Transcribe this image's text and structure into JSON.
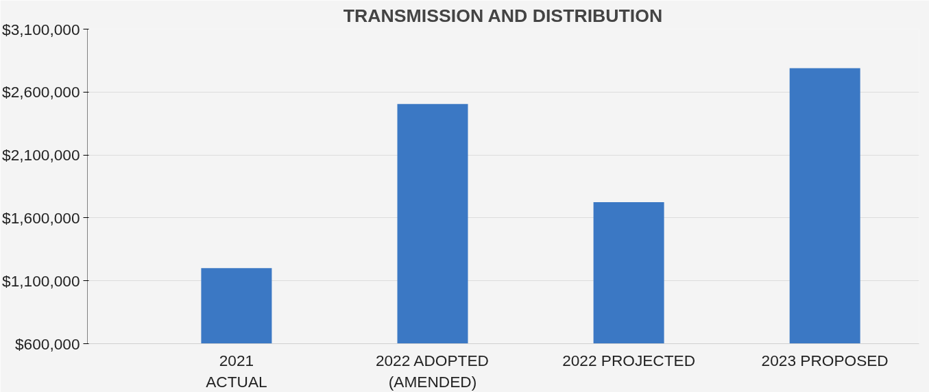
{
  "chart_data": {
    "type": "bar",
    "title": "TRANSMISSION AND DISTRIBUTION",
    "categories": [
      "2021\nACTUAL",
      "2022 ADOPTED\n(AMENDED)",
      "2022 PROJECTED",
      "2023 PROPOSED"
    ],
    "values": [
      1200000,
      2505000,
      1725000,
      2790000
    ],
    "color": "#3b78c4",
    "ylim": [
      600000,
      3100000
    ],
    "yticks": [
      {
        "value": 600000,
        "label": "$600,000"
      },
      {
        "value": 1100000,
        "label": "$1,100,000"
      },
      {
        "value": 1600000,
        "label": "$1,600,000"
      },
      {
        "value": 2100000,
        "label": "$2,100,000"
      },
      {
        "value": 2600000,
        "label": "$2,600,000"
      },
      {
        "value": 3100000,
        "label": "$3,100,000"
      }
    ],
    "grid": "y"
  }
}
